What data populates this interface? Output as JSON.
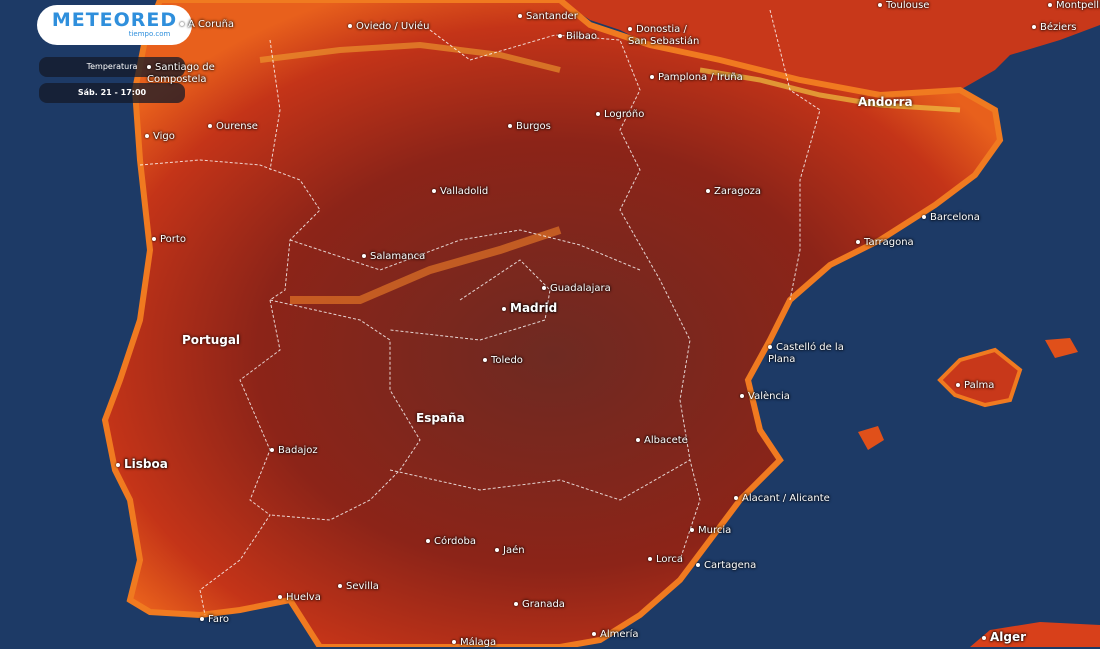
{
  "app": {
    "brand": "METEORED",
    "brand_sub": "tiempo.com"
  },
  "controls": {
    "layer": "Temperatura",
    "time": "Sáb. 21 - 17:00"
  },
  "colors": {
    "sea": "#1d3a66",
    "land_hot": "#8c2418",
    "land_warm": "#d8401a",
    "land_edge": "#f07a20",
    "mountain": "#f0c040",
    "border": "#ffffff"
  },
  "countries": [
    "Portugal",
    "España",
    "Andorra"
  ],
  "cities": [
    "A Coruña",
    "Oviedo / Uviéu",
    "Santander",
    "Bilbao",
    "Donostia / San Sebastián",
    "Toulouse",
    "Montpellier",
    "Béziers",
    "Santiago de Compostela",
    "Pamplona / Iruña",
    "Vigo",
    "Ourense",
    "Burgos",
    "Logroño",
    "Valladolid",
    "Zaragoza",
    "Barcelona",
    "Porto",
    "Tarragona",
    "Salamanca",
    "Guadalajara",
    "Madrid",
    "Castelló de la Plana",
    "Toledo",
    "València",
    "Palma",
    "Albacete",
    "Lisboa",
    "Badajoz",
    "Alacant / Alicante",
    "Córdoba",
    "Jaén",
    "Murcia",
    "Lorca",
    "Cartagena",
    "Sevilla",
    "Huelva",
    "Granada",
    "Faro",
    "Almería",
    "Málaga",
    "Alger"
  ]
}
